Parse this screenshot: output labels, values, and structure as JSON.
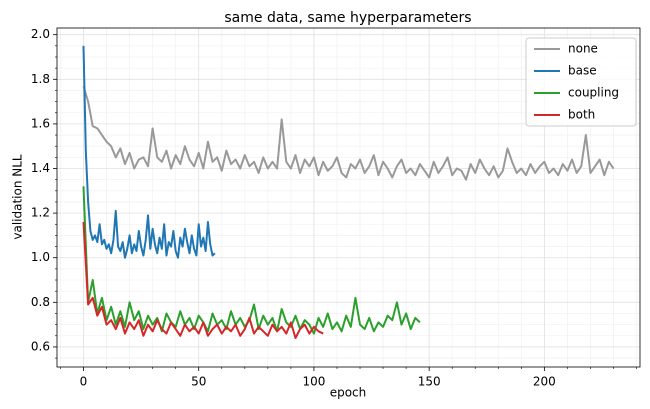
{
  "chart_data": {
    "type": "line",
    "title": "same data, same hyperparameters",
    "xlabel": "epoch",
    "ylabel": "validation NLL",
    "xlim": [
      -11.5,
      241.5
    ],
    "ylim": [
      0.51,
      2.03
    ],
    "xticks": [
      0,
      50,
      100,
      150,
      200
    ],
    "yticks": [
      {
        "value": 0.6,
        "label": "0.6"
      },
      {
        "value": 0.8,
        "label": "0.8"
      },
      {
        "value": 1.0,
        "label": "1.0"
      },
      {
        "value": 1.2,
        "label": "1.2"
      },
      {
        "value": 1.4,
        "label": "1.4"
      },
      {
        "value": 1.6,
        "label": "1.6"
      },
      {
        "value": 1.8,
        "label": "1.8"
      },
      {
        "value": 2.0,
        "label": "2.0"
      }
    ],
    "xticks_minor": [
      -10,
      10,
      20,
      30,
      40,
      60,
      70,
      80,
      90,
      110,
      120,
      130,
      140,
      160,
      170,
      180,
      190,
      210,
      220,
      230,
      240
    ],
    "yticks_minor": [
      0.55,
      0.65,
      0.7,
      0.75,
      0.85,
      0.9,
      0.95,
      1.05,
      1.1,
      1.15,
      1.25,
      1.3,
      1.35,
      1.45,
      1.5,
      1.55,
      1.65,
      1.7,
      1.75,
      1.85,
      1.9,
      1.95
    ],
    "grid": true,
    "legend": "upper right",
    "series": [
      {
        "name": "none",
        "color": "#999999",
        "x": [
          0,
          2,
          4,
          6,
          8,
          10,
          12,
          14,
          16,
          18,
          20,
          22,
          24,
          26,
          28,
          30,
          32,
          34,
          36,
          38,
          40,
          42,
          44,
          46,
          48,
          50,
          52,
          54,
          56,
          58,
          60,
          62,
          64,
          66,
          68,
          70,
          72,
          74,
          76,
          78,
          80,
          82,
          84,
          86,
          88,
          90,
          92,
          94,
          96,
          98,
          100,
          102,
          104,
          106,
          108,
          110,
          112,
          114,
          116,
          118,
          120,
          122,
          124,
          126,
          128,
          130,
          132,
          134,
          136,
          138,
          140,
          142,
          144,
          146,
          148,
          150,
          152,
          154,
          156,
          158,
          160,
          162,
          164,
          166,
          168,
          170,
          172,
          174,
          176,
          178,
          180,
          182,
          184,
          186,
          188,
          190,
          192,
          194,
          196,
          198,
          200,
          202,
          204,
          206,
          208,
          210,
          212,
          214,
          216,
          218,
          220,
          222,
          224,
          226,
          228,
          230
        ],
        "values": [
          1.77,
          1.7,
          1.59,
          1.58,
          1.55,
          1.52,
          1.5,
          1.45,
          1.49,
          1.42,
          1.47,
          1.4,
          1.44,
          1.45,
          1.41,
          1.58,
          1.45,
          1.43,
          1.48,
          1.4,
          1.46,
          1.42,
          1.5,
          1.44,
          1.41,
          1.47,
          1.4,
          1.52,
          1.43,
          1.45,
          1.39,
          1.48,
          1.42,
          1.44,
          1.4,
          1.46,
          1.41,
          1.43,
          1.38,
          1.45,
          1.4,
          1.43,
          1.4,
          1.62,
          1.43,
          1.4,
          1.46,
          1.38,
          1.44,
          1.41,
          1.45,
          1.37,
          1.43,
          1.39,
          1.41,
          1.45,
          1.38,
          1.36,
          1.42,
          1.4,
          1.44,
          1.38,
          1.41,
          1.46,
          1.37,
          1.43,
          1.4,
          1.36,
          1.41,
          1.44,
          1.38,
          1.4,
          1.37,
          1.42,
          1.39,
          1.36,
          1.43,
          1.38,
          1.41,
          1.45,
          1.37,
          1.4,
          1.39,
          1.35,
          1.42,
          1.38,
          1.44,
          1.4,
          1.37,
          1.41,
          1.36,
          1.39,
          1.49,
          1.43,
          1.38,
          1.4,
          1.37,
          1.42,
          1.38,
          1.41,
          1.43,
          1.38,
          1.4,
          1.37,
          1.42,
          1.39,
          1.44,
          1.38,
          1.41,
          1.55,
          1.38,
          1.41,
          1.44,
          1.37,
          1.43,
          1.4
        ]
      },
      {
        "name": "base",
        "color": "#1f77b4",
        "x": [
          0,
          1,
          2,
          3,
          4,
          5,
          6,
          7,
          8,
          9,
          10,
          11,
          12,
          13,
          14,
          15,
          16,
          17,
          18,
          19,
          20,
          21,
          22,
          23,
          24,
          25,
          26,
          27,
          28,
          29,
          30,
          31,
          32,
          33,
          34,
          35,
          36,
          37,
          38,
          39,
          40,
          41,
          42,
          43,
          44,
          45,
          46,
          47,
          48,
          49,
          50,
          51,
          52,
          53,
          54,
          55,
          56,
          57
        ],
        "values": [
          1.95,
          1.48,
          1.25,
          1.12,
          1.08,
          1.1,
          1.07,
          1.15,
          1.06,
          1.08,
          1.04,
          1.06,
          1.02,
          1.08,
          1.21,
          1.05,
          1.03,
          1.07,
          1.0,
          1.04,
          1.1,
          1.02,
          1.06,
          1.03,
          1.12,
          1.05,
          1.01,
          1.08,
          1.19,
          1.04,
          1.13,
          1.06,
          1.02,
          1.09,
          1.04,
          1.15,
          1.01,
          1.07,
          1.05,
          1.12,
          1.03,
          1.0,
          1.09,
          1.05,
          1.13,
          1.07,
          1.02,
          1.1,
          1.04,
          1.01,
          1.15,
          1.05,
          1.09,
          1.03,
          1.16,
          1.06,
          1.01,
          1.02
        ]
      },
      {
        "name": "coupling",
        "color": "#2ca02c",
        "x": [
          0,
          2,
          4,
          6,
          8,
          10,
          12,
          14,
          16,
          18,
          20,
          22,
          24,
          26,
          28,
          30,
          32,
          34,
          36,
          38,
          40,
          42,
          44,
          46,
          48,
          50,
          52,
          54,
          56,
          58,
          60,
          62,
          64,
          66,
          68,
          70,
          72,
          74,
          76,
          78,
          80,
          82,
          84,
          86,
          88,
          90,
          92,
          94,
          96,
          98,
          100,
          102,
          104,
          106,
          108,
          110,
          112,
          114,
          116,
          118,
          120,
          122,
          124,
          126,
          128,
          130,
          132,
          134,
          136,
          138,
          140,
          142,
          144,
          146
        ],
        "values": [
          1.32,
          0.8,
          0.9,
          0.75,
          0.82,
          0.72,
          0.78,
          0.7,
          0.76,
          0.69,
          0.8,
          0.72,
          0.76,
          0.68,
          0.74,
          0.7,
          0.73,
          0.67,
          0.75,
          0.71,
          0.69,
          0.76,
          0.7,
          0.73,
          0.68,
          0.74,
          0.71,
          0.67,
          0.75,
          0.7,
          0.72,
          0.68,
          0.76,
          0.7,
          0.73,
          0.69,
          0.72,
          0.79,
          0.68,
          0.74,
          0.7,
          0.73,
          0.67,
          0.77,
          0.71,
          0.69,
          0.74,
          0.68,
          0.72,
          0.7,
          0.66,
          0.73,
          0.69,
          0.75,
          0.68,
          0.71,
          0.67,
          0.74,
          0.69,
          0.82,
          0.7,
          0.68,
          0.73,
          0.67,
          0.71,
          0.69,
          0.74,
          0.72,
          0.8,
          0.7,
          0.75,
          0.68,
          0.73,
          0.71
        ]
      },
      {
        "name": "both",
        "color": "#d62728",
        "x": [
          0,
          2,
          4,
          6,
          8,
          10,
          12,
          14,
          16,
          18,
          20,
          22,
          24,
          26,
          28,
          30,
          32,
          34,
          36,
          38,
          40,
          42,
          44,
          46,
          48,
          50,
          52,
          54,
          56,
          58,
          60,
          62,
          64,
          66,
          68,
          70,
          72,
          74,
          76,
          78,
          80,
          82,
          84,
          86,
          88,
          90,
          92,
          94,
          96,
          98,
          100,
          102,
          104
        ],
        "values": [
          1.16,
          0.79,
          0.82,
          0.74,
          0.78,
          0.7,
          0.72,
          0.68,
          0.73,
          0.66,
          0.71,
          0.68,
          0.72,
          0.65,
          0.7,
          0.67,
          0.72,
          0.68,
          0.66,
          0.71,
          0.68,
          0.65,
          0.7,
          0.67,
          0.69,
          0.66,
          0.71,
          0.65,
          0.68,
          0.7,
          0.66,
          0.69,
          0.67,
          0.7,
          0.65,
          0.68,
          0.73,
          0.66,
          0.69,
          0.67,
          0.65,
          0.7,
          0.67,
          0.69,
          0.66,
          0.71,
          0.64,
          0.68,
          0.7,
          0.66,
          0.69,
          0.67,
          0.66
        ]
      }
    ]
  }
}
